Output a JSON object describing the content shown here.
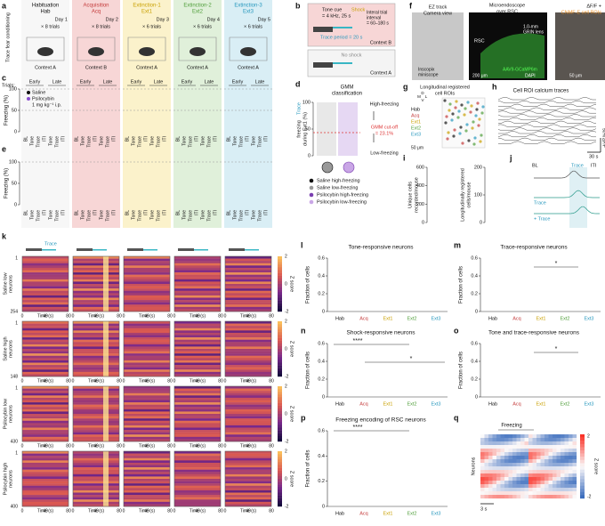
{
  "a": {
    "label": "a",
    "side": "Trace fear conditioning",
    "sessions": [
      {
        "name": "Habituation",
        "code": "Hab",
        "day": "Day 1",
        "trials": "× 8 trials",
        "context": "Context A"
      },
      {
        "name": "Acquisition",
        "code": "Acq",
        "day": "Day 2",
        "trials": "× 8 trials",
        "context": "Context B"
      },
      {
        "name": "Extinction-1",
        "code": "Ext1",
        "day": "Day 3",
        "trials": "× 6 trials",
        "context": "Context A"
      },
      {
        "name": "Extinction-2",
        "code": "Ext2",
        "day": "Day 4",
        "trials": "× 6 trials",
        "context": "Context A"
      },
      {
        "name": "Extinction-3",
        "code": "Ext3",
        "day": "Day 5",
        "trials": "× 6 trials",
        "context": "Context A"
      }
    ]
  },
  "b": {
    "label": "b",
    "tone": "Tone cue",
    "tone_detail": "= 4 kHz, 25 s",
    "shock": "Shock",
    "interval": "Interal trial",
    "interval2": "interval",
    "interval_range": "= 60–180 s",
    "trace": "Trace period = 20 s",
    "context_b": "Context B",
    "no_shock": "No shock",
    "context_a": "Context A"
  },
  "c": {
    "label": "c",
    "trials": "Trials:",
    "early": "Early",
    "late": "Late",
    "ylabel": "Freezing (%)",
    "yticks": [
      0,
      50,
      100
    ],
    "legend": [
      "Saline",
      "Psilocybin",
      "1 mg kg⁻¹ i.p."
    ],
    "xcats": [
      "BL",
      "Tone",
      "Trace",
      "ITI"
    ]
  },
  "d": {
    "label": "d",
    "title": "GMM",
    "title2": "classification",
    "ylabel_colored": "Trace",
    "ylabel": "freezing",
    "ylabel2": "during Ext1 (%)",
    "yticks": [
      0,
      50,
      100
    ],
    "high": "High-freezing",
    "low": "Low-freezing",
    "cutoff": "GMM cut-off",
    "cutoff_value": "= 23.1%",
    "legend": [
      "Saline high-freezing",
      "Saline low-freezing",
      "Psilocybin high-freezing",
      "Psilocybin low-freezing"
    ]
  },
  "e": {
    "label": "e",
    "ylabel": "Freezing (%)",
    "yticks": [
      0,
      50,
      100
    ]
  },
  "f": {
    "label": "f",
    "camera": "EZ track",
    "camera2": "Camera view",
    "scope": "Inscopix",
    "scope2": "miniscope",
    "micro": "Microendoscope",
    "micro2": "over RSC",
    "rsc": "RSC",
    "lens": "1.0-mm",
    "lens2": "GRIN lens",
    "scale": "200 μm",
    "virus": "AAV9-GCaMP6m",
    "dapi": "DAPI",
    "roi": "ΔF/F +",
    "roi2": "CNMF-E cell ROIs",
    "scale2": "50 μm"
  },
  "g": {
    "label": "g",
    "title": "Longitudinal registered",
    "title2": "cell ROIs",
    "sessions": [
      "Hab",
      "Acq",
      "Ext1",
      "Ext2",
      "Ext3"
    ],
    "scale": "50 μm",
    "axes": [
      "D",
      "M",
      "L",
      "V"
    ]
  },
  "h": {
    "label": "h",
    "title": "Cell ROI calcium traces",
    "time": "30 s",
    "amp": "50% ΔF/F"
  },
  "i": {
    "label": "i",
    "ylabel": "Unique cells",
    "ylabel2": "recorded/mouse",
    "yticks": [
      0,
      200,
      400,
      600
    ],
    "ylabel_b": "Longitudinally registered",
    "ylabel_b2": "cells/mouse",
    "yticks_b": [
      0,
      100,
      200
    ]
  },
  "j": {
    "label": "j",
    "bl": "BL",
    "trace": "Trace",
    "iti": "ITI",
    "trace2": "Trace",
    "trace3": "+ Trace"
  },
  "k": {
    "label": "k",
    "trace": "Trace",
    "rows": [
      {
        "name": "Saline low",
        "name2": "neurons",
        "count": 254
      },
      {
        "name": "Saline high",
        "name2": "neurons",
        "count": 148
      },
      {
        "name": "Psilocybin low",
        "name2": "neurons",
        "count": 430
      },
      {
        "name": "Psilocybin high",
        "name2": "neurons",
        "count": 400
      }
    ],
    "zticks": [
      2,
      0,
      -2
    ],
    "zlabel": "Z score",
    "xticks": [
      0,
      40,
      80
    ],
    "xlabel": "Time (s)",
    "first": 1
  },
  "bars": [
    {
      "label": "l",
      "title": "Tone-responsive neurons"
    },
    {
      "label": "m",
      "title": "Trace-responsive neurons"
    },
    {
      "label": "n",
      "title": "Shock-responsive neurons"
    },
    {
      "label": "o",
      "title": "Tone and trace-responsive neurons"
    },
    {
      "label": "p",
      "title": "Freezing encoding of RSC neurons"
    }
  ],
  "bar_ylabel": "Fraction of cells",
  "bar_yticks": [
    0,
    0.2,
    0.4,
    0.6
  ],
  "sig": "*",
  "sig4": "****",
  "q": {
    "label": "q",
    "freezing": "Freezing",
    "ylabel": "Neurons",
    "zticks": [
      2,
      -2
    ],
    "zlabel": "Z score",
    "time": "3 s"
  }
}
